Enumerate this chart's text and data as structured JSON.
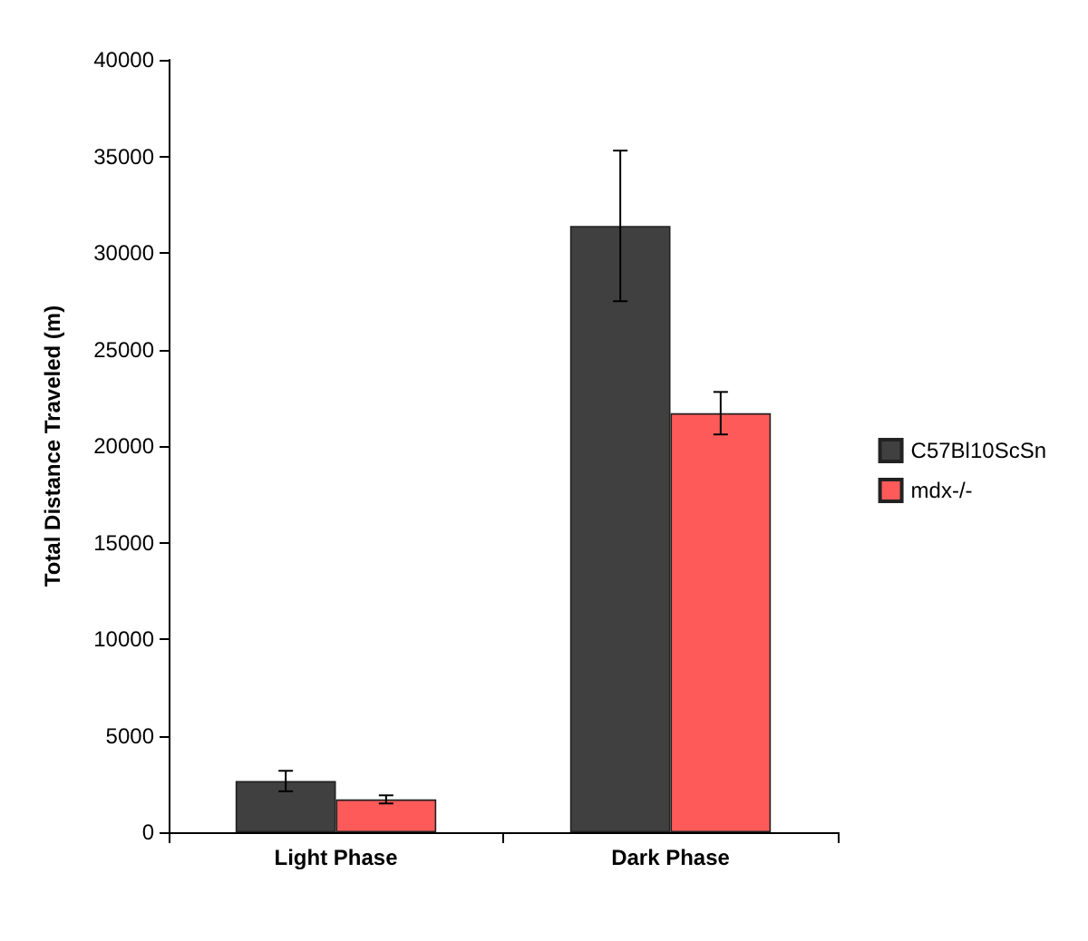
{
  "chart_data": {
    "type": "bar",
    "ylabel": "Total Distance Traveled (m)",
    "categories": [
      "Light Phase",
      "Dark Phase"
    ],
    "series": [
      {
        "name": "C57Bl10ScSn",
        "color": "#404040",
        "values": [
          2650,
          31400
        ],
        "errors": [
          530,
          3900
        ]
      },
      {
        "name": "mdx-/-",
        "color": "#ff5a5a",
        "values": [
          1700,
          21700
        ],
        "errors": [
          210,
          1100
        ]
      }
    ],
    "ylim": [
      0,
      40000
    ],
    "yticks": [
      0,
      5000,
      10000,
      15000,
      20000,
      25000,
      30000,
      35000,
      40000
    ],
    "grid": false,
    "legend": "right"
  }
}
